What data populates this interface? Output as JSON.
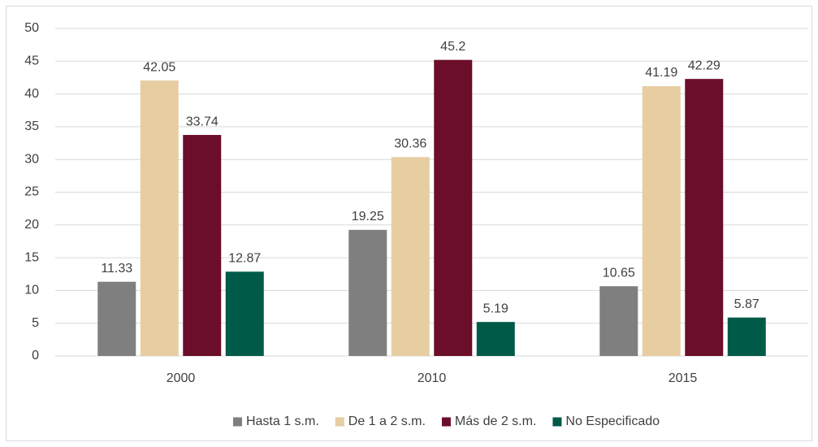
{
  "chart_data": {
    "type": "bar",
    "categories": [
      "2000",
      "2010",
      "2015"
    ],
    "series": [
      {
        "name": "Hasta 1 s.m.",
        "color": "#7f7f7f",
        "values": [
          11.33,
          19.25,
          10.65
        ]
      },
      {
        "name": "De 1 a 2 s.m.",
        "color": "#e6cda2",
        "values": [
          42.05,
          30.36,
          41.19
        ]
      },
      {
        "name": "Más de 2 s.m.",
        "color": "#6b0e2a",
        "values": [
          33.74,
          45.2,
          42.29
        ]
      },
      {
        "name": "No Especificado",
        "color": "#005a48",
        "values": [
          12.87,
          5.19,
          5.87
        ]
      }
    ],
    "ylim": [
      0,
      50
    ],
    "yticks": [
      0,
      5,
      10,
      15,
      20,
      25,
      30,
      35,
      40,
      45,
      50
    ],
    "grid": true,
    "legend": "bottom"
  }
}
